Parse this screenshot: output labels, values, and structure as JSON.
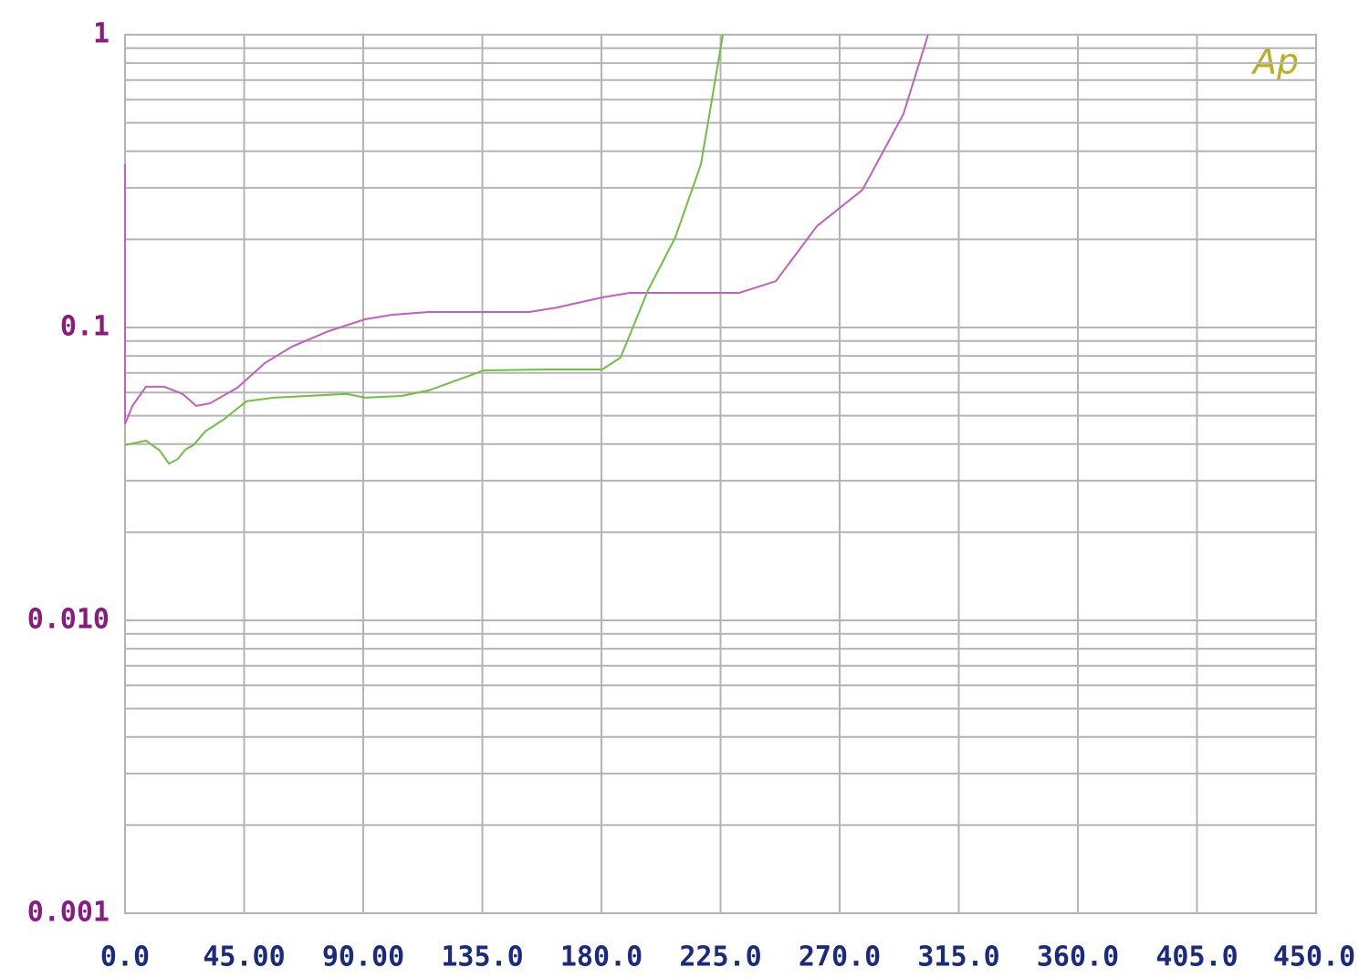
{
  "chart_data": {
    "type": "line",
    "logo": "Ap",
    "log_y": true,
    "grid": true,
    "minor_grid": true,
    "xlim": [
      0,
      450
    ],
    "ylim": [
      0.001,
      1
    ],
    "xticks": [
      {
        "value": 0,
        "label": "0.0"
      },
      {
        "value": 45,
        "label": "45.00"
      },
      {
        "value": 90,
        "label": "90.00"
      },
      {
        "value": 135,
        "label": "135.0"
      },
      {
        "value": 180,
        "label": "180.0"
      },
      {
        "value": 225,
        "label": "225.0"
      },
      {
        "value": 270,
        "label": "270.0"
      },
      {
        "value": 315,
        "label": "315.0"
      },
      {
        "value": 360,
        "label": "360.0"
      },
      {
        "value": 405,
        "label": "405.0"
      },
      {
        "value": 450,
        "label": "450.0"
      }
    ],
    "yticks": [
      0.001,
      {
        "value": 0.01,
        "label": "0.010"
      },
      0.1,
      1
    ],
    "series": [
      {
        "color": "#c060c0",
        "x": [
          0,
          0,
          2.8,
          7.9,
          14.8,
          21.7,
          26.9,
          32.1,
          42.4,
          52.8,
          63.1,
          76.9,
          90.7,
          101,
          114.8,
          152.8,
          163.1,
          180.3,
          190.7,
          232.1,
          245.9,
          261.4,
          278.6,
          294.1,
          303.4
        ],
        "values": [
          0.361,
          0.0468,
          0.054,
          0.0628,
          0.0628,
          0.0593,
          0.054,
          0.0551,
          0.0623,
          0.0756,
          0.0861,
          0.0972,
          0.1067,
          0.1106,
          0.113,
          0.113,
          0.117,
          0.1267,
          0.1313,
          0.1313,
          0.144,
          0.222,
          0.295,
          0.536,
          1
        ]
      },
      {
        "color": "#70c040",
        "x": [
          0,
          7.9,
          13.1,
          16.6,
          20,
          22.8,
          25.9,
          30.3,
          37.2,
          45.9,
          56.2,
          83.8,
          90.7,
          104.5,
          114.8,
          135.5,
          159.7,
          180.3,
          187.2,
          197.6,
          207.9,
          217.6,
          225.9
        ],
        "values": [
          0.0397,
          0.0411,
          0.038,
          0.0343,
          0.0356,
          0.0383,
          0.0397,
          0.0442,
          0.0485,
          0.056,
          0.0576,
          0.0593,
          0.0576,
          0.0584,
          0.061,
          0.0714,
          0.0719,
          0.0719,
          0.0789,
          0.134,
          0.203,
          0.361,
          1
        ]
      }
    ]
  }
}
